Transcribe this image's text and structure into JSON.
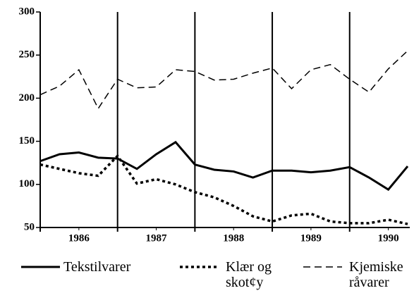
{
  "chart_data": {
    "type": "line",
    "x": [
      1986,
      1986.25,
      1986.5,
      1986.75,
      1987,
      1987.25,
      1987.5,
      1987.75,
      1988,
      1988.25,
      1988.5,
      1988.75,
      1989,
      1989.25,
      1989.5,
      1989.75,
      1990,
      1990.25,
      1990.5,
      1990.75
    ],
    "series": [
      {
        "name": "Tekstilvarer",
        "color": "#000000",
        "style": "solid",
        "values": [
          127,
          135,
          137,
          131,
          130,
          118,
          135,
          149,
          123,
          117,
          115,
          108,
          116,
          116,
          114,
          116,
          120,
          108,
          94,
          121
        ]
      },
      {
        "name": "Klær og skot¢y",
        "color": "#000000",
        "style": "dotted",
        "values": [
          123,
          118,
          113,
          110,
          133,
          101,
          106,
          100,
          91,
          85,
          75,
          63,
          57,
          64,
          66,
          57,
          55,
          55,
          59,
          54
        ]
      },
      {
        "name": "Kjemiske råvarer",
        "color": "#000000",
        "style": "dashed",
        "values": [
          204,
          214,
          233,
          188,
          222,
          212,
          213,
          233,
          231,
          221,
          222,
          229,
          235,
          211,
          233,
          239,
          222,
          207,
          234,
          255
        ]
      }
    ],
    "xlim": [
      1986,
      1990.75
    ],
    "xticks": [
      {
        "value": 1986.5,
        "label": "1986"
      },
      {
        "value": 1987.5,
        "label": "1987"
      },
      {
        "value": 1988.5,
        "label": "1988"
      },
      {
        "value": 1989.5,
        "label": "1989"
      },
      {
        "value": 1990.5,
        "label": "1990"
      }
    ],
    "year_lines": [
      1986,
      1987,
      1988,
      1989,
      1990
    ],
    "ylim": [
      50,
      300
    ],
    "yticks": [
      50,
      100,
      150,
      200,
      250,
      300
    ]
  }
}
